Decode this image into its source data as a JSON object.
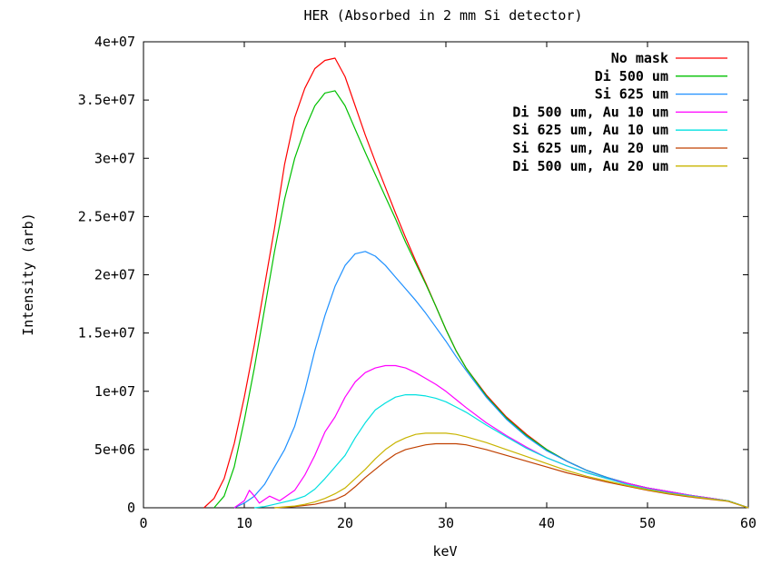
{
  "chart_data": {
    "type": "line",
    "title": "HER (Absorbed in 2 mm Si detector)",
    "xlabel": "keV",
    "ylabel": "Intensity (arb)",
    "xlim": [
      0,
      60
    ],
    "ylim": [
      0,
      40000000
    ],
    "x_ticks": [
      0,
      10,
      20,
      30,
      40,
      50,
      60
    ],
    "x_tick_labels": [
      "0",
      "10",
      "20",
      "30",
      "40",
      "50",
      "60"
    ],
    "y_ticks": [
      0,
      5000000,
      10000000,
      15000000,
      20000000,
      25000000,
      30000000,
      35000000,
      40000000
    ],
    "y_tick_labels": [
      "0",
      "5e+06",
      "1e+07",
      "1.5e+07",
      "2e+07",
      "2.5e+07",
      "3e+07",
      "3.5e+07",
      "4e+07"
    ],
    "grid": false,
    "legend_position": "top-right",
    "series": [
      {
        "name": "No mask",
        "color": "#ff0000",
        "x": [
          6,
          7,
          8,
          9,
          10,
          11,
          12,
          13,
          14,
          15,
          16,
          17,
          18,
          19,
          20,
          21,
          22,
          23,
          24,
          25,
          26,
          27,
          28,
          29,
          30,
          31,
          32,
          34,
          36,
          38,
          40,
          42,
          44,
          46,
          48,
          50,
          52,
          54,
          56,
          58,
          60
        ],
        "y": [
          0,
          800000,
          2500000,
          5500000,
          9500000,
          14000000,
          19000000,
          24000000,
          29500000,
          33500000,
          36000000,
          37700000,
          38400000,
          38600000,
          37000000,
          34500000,
          32000000,
          29700000,
          27500000,
          25300000,
          23200000,
          21200000,
          19300000,
          17300000,
          15300000,
          13500000,
          12000000,
          9700000,
          7800000,
          6300000,
          5000000,
          4000000,
          3200000,
          2600000,
          2100000,
          1700000,
          1400000,
          1100000,
          850000,
          600000,
          0
        ]
      },
      {
        "name": "Di 500 um",
        "color": "#00c000",
        "x": [
          7,
          8,
          9,
          10,
          11,
          12,
          13,
          14,
          15,
          16,
          17,
          18,
          19,
          20,
          21,
          22,
          23,
          24,
          25,
          26,
          27,
          28,
          29,
          30,
          31,
          32,
          34,
          36,
          38,
          40,
          42,
          44,
          46,
          48,
          50,
          52,
          54,
          56,
          58,
          60
        ],
        "y": [
          0,
          1000000,
          3500000,
          7500000,
          12000000,
          17000000,
          22000000,
          26500000,
          30000000,
          32500000,
          34500000,
          35600000,
          35800000,
          34500000,
          32500000,
          30500000,
          28600000,
          26700000,
          24800000,
          22800000,
          21000000,
          19200000,
          17300000,
          15300000,
          13500000,
          12000000,
          9600000,
          7700000,
          6200000,
          5000000,
          4000000,
          3200000,
          2600000,
          2100000,
          1700000,
          1400000,
          1100000,
          850000,
          600000,
          0
        ]
      },
      {
        "name": "Si 625 um",
        "color": "#1e90ff",
        "x": [
          9,
          10,
          11,
          12,
          13,
          14,
          15,
          16,
          17,
          18,
          19,
          20,
          21,
          22,
          23,
          24,
          25,
          26,
          27,
          28,
          29,
          30,
          31,
          32,
          34,
          36,
          38,
          40,
          42,
          44,
          46,
          48,
          50,
          52,
          54,
          56,
          58,
          60
        ],
        "y": [
          0,
          400000,
          1000000,
          2000000,
          3500000,
          5000000,
          7000000,
          10000000,
          13500000,
          16500000,
          19000000,
          20800000,
          21800000,
          22000000,
          21600000,
          20800000,
          19800000,
          18800000,
          17800000,
          16700000,
          15500000,
          14300000,
          13000000,
          11800000,
          9500000,
          7600000,
          6100000,
          4900000,
          4000000,
          3200000,
          2600000,
          2100000,
          1700000,
          1400000,
          1100000,
          850000,
          600000,
          0
        ]
      },
      {
        "name": "Di 500 um, Au 10 um",
        "color": "#ff00ff",
        "x": [
          9,
          10,
          10.5,
          11,
          11.5,
          12,
          12.5,
          13,
          13.5,
          14,
          15,
          16,
          17,
          18,
          19,
          20,
          21,
          22,
          23,
          24,
          25,
          26,
          27,
          28,
          29,
          30,
          32,
          34,
          36,
          38,
          40,
          42,
          44,
          46,
          48,
          50,
          52,
          54,
          56,
          58,
          60
        ],
        "y": [
          0,
          600000,
          1500000,
          1000000,
          400000,
          700000,
          1000000,
          800000,
          600000,
          900000,
          1500000,
          2800000,
          4500000,
          6500000,
          7800000,
          9500000,
          10800000,
          11600000,
          12000000,
          12200000,
          12200000,
          12000000,
          11600000,
          11100000,
          10600000,
          10000000,
          8600000,
          7300000,
          6200000,
          5200000,
          4300000,
          3600000,
          3000000,
          2500000,
          2100000,
          1700000,
          1400000,
          1100000,
          850000,
          600000,
          0
        ]
      },
      {
        "name": "Si 625 um, Au 10 um",
        "color": "#00e0e0",
        "x": [
          11,
          12,
          13,
          14,
          15,
          16,
          17,
          18,
          19,
          20,
          21,
          22,
          23,
          24,
          25,
          26,
          27,
          28,
          29,
          30,
          32,
          34,
          36,
          38,
          40,
          42,
          44,
          46,
          48,
          50,
          52,
          54,
          56,
          58,
          60
        ],
        "y": [
          0,
          100000,
          300000,
          500000,
          700000,
          1000000,
          1600000,
          2500000,
          3500000,
          4500000,
          6000000,
          7300000,
          8400000,
          9000000,
          9500000,
          9700000,
          9700000,
          9600000,
          9400000,
          9100000,
          8200000,
          7100000,
          6100000,
          5100000,
          4300000,
          3600000,
          3000000,
          2500000,
          2000000,
          1600000,
          1300000,
          1050000,
          800000,
          600000,
          0
        ]
      },
      {
        "name": "Si 625 um, Au 20 um",
        "color": "#c04000",
        "x": [
          13,
          14,
          15,
          16,
          17,
          18,
          19,
          20,
          21,
          22,
          23,
          24,
          25,
          26,
          27,
          28,
          29,
          30,
          31,
          32,
          34,
          36,
          38,
          40,
          42,
          44,
          46,
          48,
          50,
          52,
          54,
          56,
          58,
          60
        ],
        "y": [
          0,
          50000,
          100000,
          200000,
          300000,
          500000,
          700000,
          1100000,
          1800000,
          2600000,
          3300000,
          4000000,
          4600000,
          5000000,
          5200000,
          5400000,
          5500000,
          5500000,
          5500000,
          5400000,
          5000000,
          4500000,
          4000000,
          3500000,
          3000000,
          2600000,
          2200000,
          1850000,
          1500000,
          1200000,
          950000,
          750000,
          550000,
          0
        ]
      },
      {
        "name": "Di 500 um, Au 20 um",
        "color": "#c8b400",
        "x": [
          13,
          14,
          15,
          16,
          17,
          18,
          19,
          20,
          21,
          22,
          23,
          24,
          25,
          26,
          27,
          28,
          29,
          30,
          31,
          32,
          34,
          36,
          38,
          40,
          42,
          44,
          46,
          48,
          50,
          52,
          54,
          56,
          58,
          60
        ],
        "y": [
          0,
          80000,
          150000,
          300000,
          500000,
          800000,
          1200000,
          1700000,
          2500000,
          3300000,
          4200000,
          5000000,
          5600000,
          6000000,
          6300000,
          6400000,
          6400000,
          6400000,
          6300000,
          6100000,
          5600000,
          5000000,
          4400000,
          3800000,
          3200000,
          2700000,
          2300000,
          1900000,
          1550000,
          1250000,
          1000000,
          780000,
          580000,
          0
        ]
      }
    ]
  }
}
